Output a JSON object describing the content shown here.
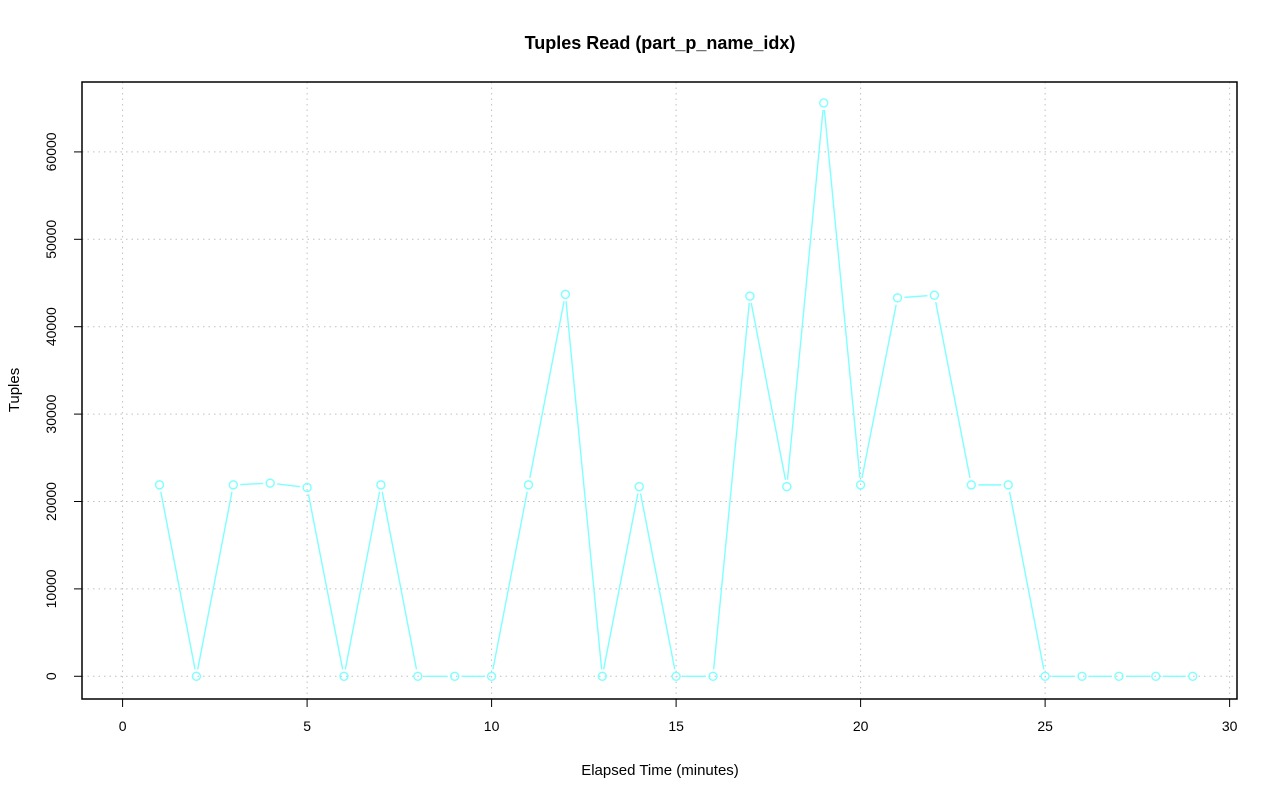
{
  "chart_data": {
    "type": "line",
    "title": "Tuples Read (part_p_name_idx)",
    "xlabel": "Elapsed Time (minutes)",
    "ylabel": "Tuples",
    "xlim": [
      -1.1,
      30.2
    ],
    "ylim": [
      -2600,
      68000
    ],
    "xticks": [
      0,
      5,
      10,
      15,
      20,
      25,
      30
    ],
    "yticks": [
      0,
      10000,
      20000,
      30000,
      40000,
      50000,
      60000
    ],
    "grid": true,
    "marker": "open-circle",
    "series": [
      {
        "color": "#7FFFFF",
        "x": [
          1,
          2,
          3,
          4,
          5,
          6,
          7,
          8,
          9,
          10,
          11,
          12,
          13,
          14,
          15,
          16,
          17,
          18,
          19,
          20,
          21,
          22,
          23,
          24,
          25,
          26,
          27,
          28,
          29
        ],
        "y": [
          21900,
          0,
          21900,
          22100,
          21600,
          0,
          21900,
          0,
          0,
          0,
          21900,
          43700,
          0,
          21700,
          0,
          0,
          43500,
          21700,
          65600,
          21900,
          43300,
          43600,
          21900,
          21900,
          0,
          0,
          0,
          0,
          0
        ]
      }
    ]
  }
}
